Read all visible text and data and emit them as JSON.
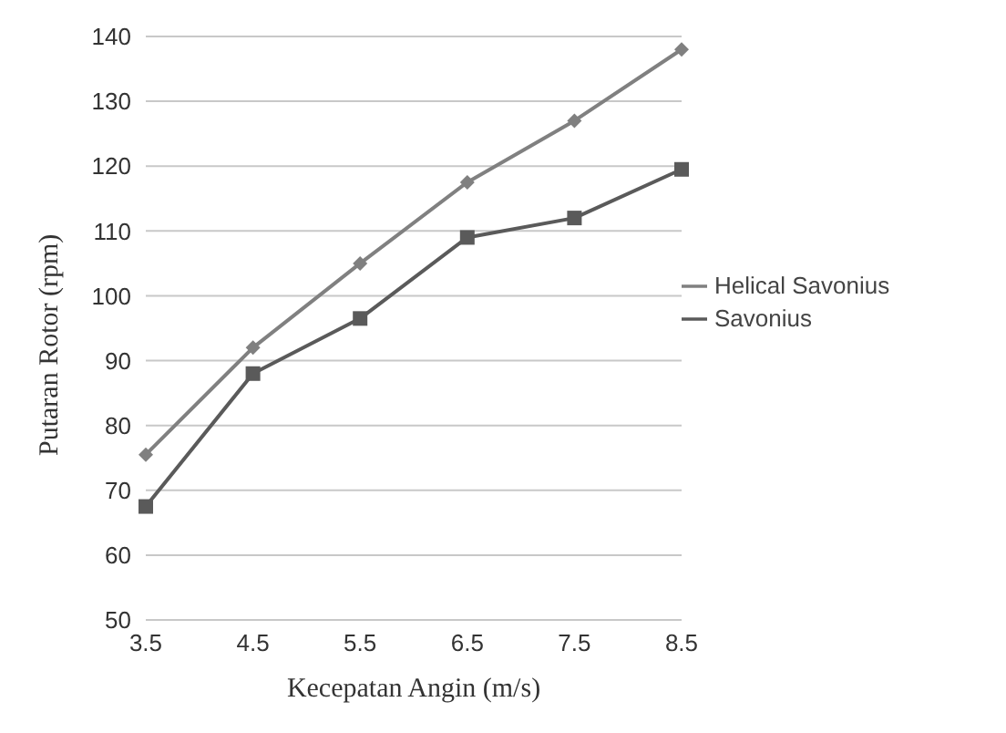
{
  "chart_data": {
    "type": "line",
    "xlabel": "Kecepatan Angin (m/s)",
    "ylabel": "Putaran Rotor (rpm)",
    "categories": [
      "3.5",
      "4.5",
      "5.5",
      "6.5",
      "7.5",
      "8.5"
    ],
    "series": [
      {
        "name": "Helical Savonius",
        "color": "#808080",
        "marker": "diamond",
        "values": [
          75.5,
          92,
          105,
          117.5,
          127,
          138
        ]
      },
      {
        "name": "Savonius",
        "color": "#5a5a5a",
        "marker": "square",
        "values": [
          67.5,
          88,
          96.5,
          109,
          112,
          119.5
        ]
      }
    ],
    "ylim": [
      50,
      140
    ],
    "yticks": [
      50,
      60,
      70,
      80,
      90,
      100,
      110,
      120,
      130,
      140
    ],
    "grid": "y",
    "legend": "right",
    "line_style": "solid"
  }
}
